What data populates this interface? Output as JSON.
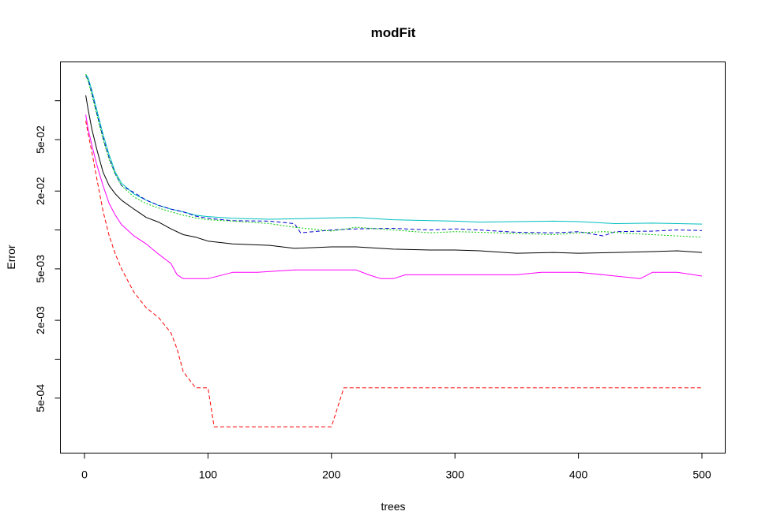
{
  "chart_data": {
    "type": "line",
    "title": "modFit",
    "xlabel": "trees",
    "ylabel": "Error",
    "xlim": [
      0,
      500
    ],
    "ylim": [
      0.0002,
      0.19
    ],
    "y_scale": "log",
    "grid": false,
    "legend": "none",
    "x_ticks": [
      0,
      100,
      200,
      300,
      400,
      500
    ],
    "x_tick_labels": [
      "0",
      "100",
      "200",
      "300",
      "400",
      "500"
    ],
    "y_ticks": [
      0.0005,
      0.002,
      0.005,
      0.02,
      0.05
    ],
    "y_tick_labels": [
      "5e-04",
      "2e-03",
      "5e-03",
      "2e-02",
      "5e-02"
    ],
    "y_minor_ticks": [
      0.001,
      0.01,
      0.1
    ],
    "series": [
      {
        "color": "#000000",
        "dash": "solid",
        "x": [
          1,
          3,
          6,
          10,
          15,
          20,
          25,
          30,
          40,
          50,
          60,
          70,
          80,
          90,
          100,
          120,
          150,
          170,
          200,
          220,
          250,
          280,
          300,
          320,
          350,
          380,
          400,
          430,
          460,
          480,
          500
        ],
        "y": [
          0.11,
          0.085,
          0.06,
          0.042,
          0.028,
          0.022,
          0.019,
          0.017,
          0.0145,
          0.0125,
          0.0115,
          0.0102,
          0.0092,
          0.0088,
          0.0082,
          0.0078,
          0.0076,
          0.0072,
          0.0074,
          0.0074,
          0.0071,
          0.007,
          0.007,
          0.0069,
          0.0066,
          0.0067,
          0.0066,
          0.0067,
          0.0068,
          0.0069,
          0.0067
        ]
      },
      {
        "color": "#ff00ff",
        "dash": "solid",
        "x": [
          1,
          3,
          6,
          10,
          15,
          20,
          25,
          30,
          40,
          50,
          60,
          70,
          75,
          80,
          90,
          100,
          120,
          140,
          170,
          200,
          220,
          230,
          240,
          250,
          260,
          280,
          300,
          350,
          370,
          400,
          420,
          450,
          460,
          480,
          500
        ],
        "y": [
          0.078,
          0.06,
          0.045,
          0.032,
          0.022,
          0.016,
          0.013,
          0.011,
          0.009,
          0.0078,
          0.0065,
          0.0055,
          0.0045,
          0.0042,
          0.0042,
          0.0042,
          0.0047,
          0.0047,
          0.0049,
          0.0049,
          0.0049,
          0.0045,
          0.0042,
          0.0042,
          0.0045,
          0.0045,
          0.0045,
          0.0045,
          0.0047,
          0.0047,
          0.0045,
          0.0042,
          0.0047,
          0.0047,
          0.0044
        ]
      },
      {
        "color": "#ff0000",
        "dash": "dashed",
        "x": [
          1,
          3,
          6,
          10,
          15,
          20,
          25,
          30,
          40,
          50,
          60,
          70,
          75,
          80,
          90,
          100,
          105,
          130,
          160,
          200,
          210,
          230,
          250,
          280,
          300,
          310,
          350,
          400,
          450,
          500
        ],
        "y": [
          0.07,
          0.055,
          0.04,
          0.025,
          0.014,
          0.009,
          0.0065,
          0.005,
          0.0033,
          0.0025,
          0.0021,
          0.0016,
          0.0012,
          0.0008,
          0.0006,
          0.0006,
          0.0003,
          0.0003,
          0.0003,
          0.0003,
          0.0006,
          0.0006,
          0.0006,
          0.0006,
          0.0006,
          0.0006,
          0.0006,
          0.0006,
          0.0006,
          0.0006
        ]
      },
      {
        "color": "#00bfbf",
        "dash": "solid",
        "x": [
          1,
          3,
          6,
          10,
          15,
          20,
          25,
          30,
          40,
          50,
          60,
          70,
          80,
          90,
          100,
          120,
          150,
          170,
          200,
          220,
          250,
          280,
          300,
          320,
          350,
          380,
          400,
          430,
          460,
          480,
          500
        ],
        "y": [
          0.16,
          0.15,
          0.12,
          0.085,
          0.055,
          0.038,
          0.028,
          0.023,
          0.019,
          0.017,
          0.0155,
          0.0145,
          0.0138,
          0.013,
          0.0127,
          0.0123,
          0.0121,
          0.0122,
          0.0124,
          0.0125,
          0.012,
          0.0118,
          0.0117,
          0.0115,
          0.0116,
          0.0117,
          0.0116,
          0.0112,
          0.0113,
          0.0112,
          0.0111
        ]
      },
      {
        "color": "#0000cc",
        "dash": "dashed",
        "x": [
          1,
          3,
          6,
          10,
          15,
          20,
          25,
          30,
          40,
          50,
          60,
          70,
          80,
          90,
          100,
          120,
          150,
          170,
          175,
          200,
          220,
          250,
          280,
          300,
          320,
          350,
          380,
          400,
          420,
          430,
          460,
          480,
          500
        ],
        "y": [
          0.155,
          0.145,
          0.115,
          0.08,
          0.052,
          0.036,
          0.027,
          0.022,
          0.0195,
          0.017,
          0.0155,
          0.0145,
          0.0138,
          0.0128,
          0.0123,
          0.0118,
          0.0117,
          0.0112,
          0.0095,
          0.01,
          0.0102,
          0.0103,
          0.01,
          0.0102,
          0.01,
          0.0096,
          0.0095,
          0.0097,
          0.009,
          0.0097,
          0.0098,
          0.01,
          0.0099
        ]
      },
      {
        "color": "#00cc00",
        "dash": "dotted",
        "x": [
          1,
          3,
          6,
          10,
          15,
          20,
          25,
          30,
          40,
          50,
          60,
          70,
          80,
          90,
          100,
          120,
          150,
          170,
          200,
          220,
          250,
          280,
          300,
          320,
          350,
          380,
          400,
          420,
          450,
          480,
          500
        ],
        "y": [
          0.16,
          0.14,
          0.11,
          0.078,
          0.05,
          0.035,
          0.027,
          0.022,
          0.018,
          0.016,
          0.0148,
          0.0138,
          0.013,
          0.0124,
          0.012,
          0.0117,
          0.0112,
          0.0105,
          0.0098,
          0.0105,
          0.01,
          0.0095,
          0.0097,
          0.0096,
          0.0094,
          0.0092,
          0.0095,
          0.0097,
          0.0093,
          0.009,
          0.0088
        ]
      }
    ]
  }
}
